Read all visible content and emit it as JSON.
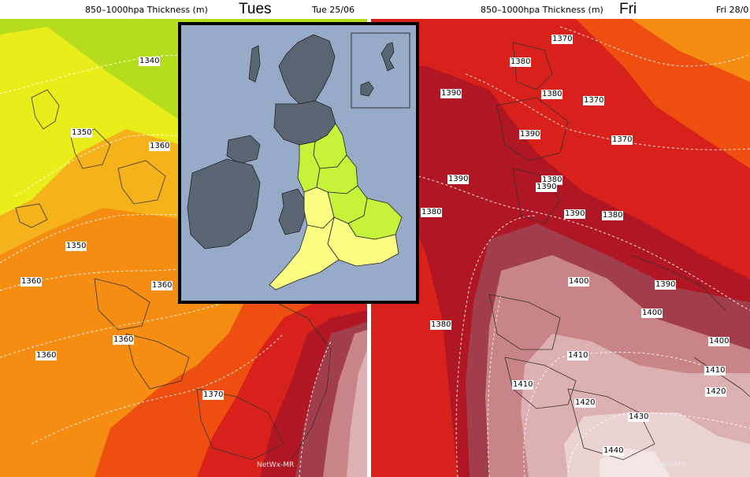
{
  "left_panel": {
    "title": "850–1000hpa Thickness (m)",
    "day": "Tues",
    "date": "Tue 25/06",
    "credit": "NetWx-MR",
    "labels": [
      "1340",
      "1350",
      "1360",
      "1350",
      "1360",
      "1360",
      "1360",
      "1360",
      "1370"
    ]
  },
  "right_panel": {
    "title": "850–1000hpa Thickness (m)",
    "day": "Fri",
    "date": "Fri 28/0",
    "credit": "NetWx-MR",
    "labels": [
      "1370",
      "1380",
      "1380",
      "1370",
      "1390",
      "1390",
      "1370",
      "1390",
      "1380",
      "1390",
      "1380",
      "1390",
      "1380",
      "1400",
      "1390",
      "1380",
      "1400",
      "1400",
      "1410",
      "1410",
      "1410",
      "1420",
      "1420",
      "1430",
      "1440"
    ]
  },
  "colors": {
    "band_1340": "#b6dc1e",
    "band_1350": "#e9ee1a",
    "band_1355": "#f6b21a",
    "band_1360": "#f58d12",
    "band_1370": "#ee4f10",
    "band_1380": "#d8211a",
    "band_1390": "#b01624",
    "band_1400": "#a23e4c",
    "band_1410": "#c98487",
    "band_1420": "#ddb0b1",
    "band_1430": "#ecd3d3",
    "inset_sea": "#96abc7",
    "inset_grey": "#5a6574",
    "inset_green": "#c5f33a",
    "inset_yellow": "#fbfc82"
  },
  "inset": {
    "regions": [
      "grey",
      "green",
      "yellow"
    ]
  }
}
